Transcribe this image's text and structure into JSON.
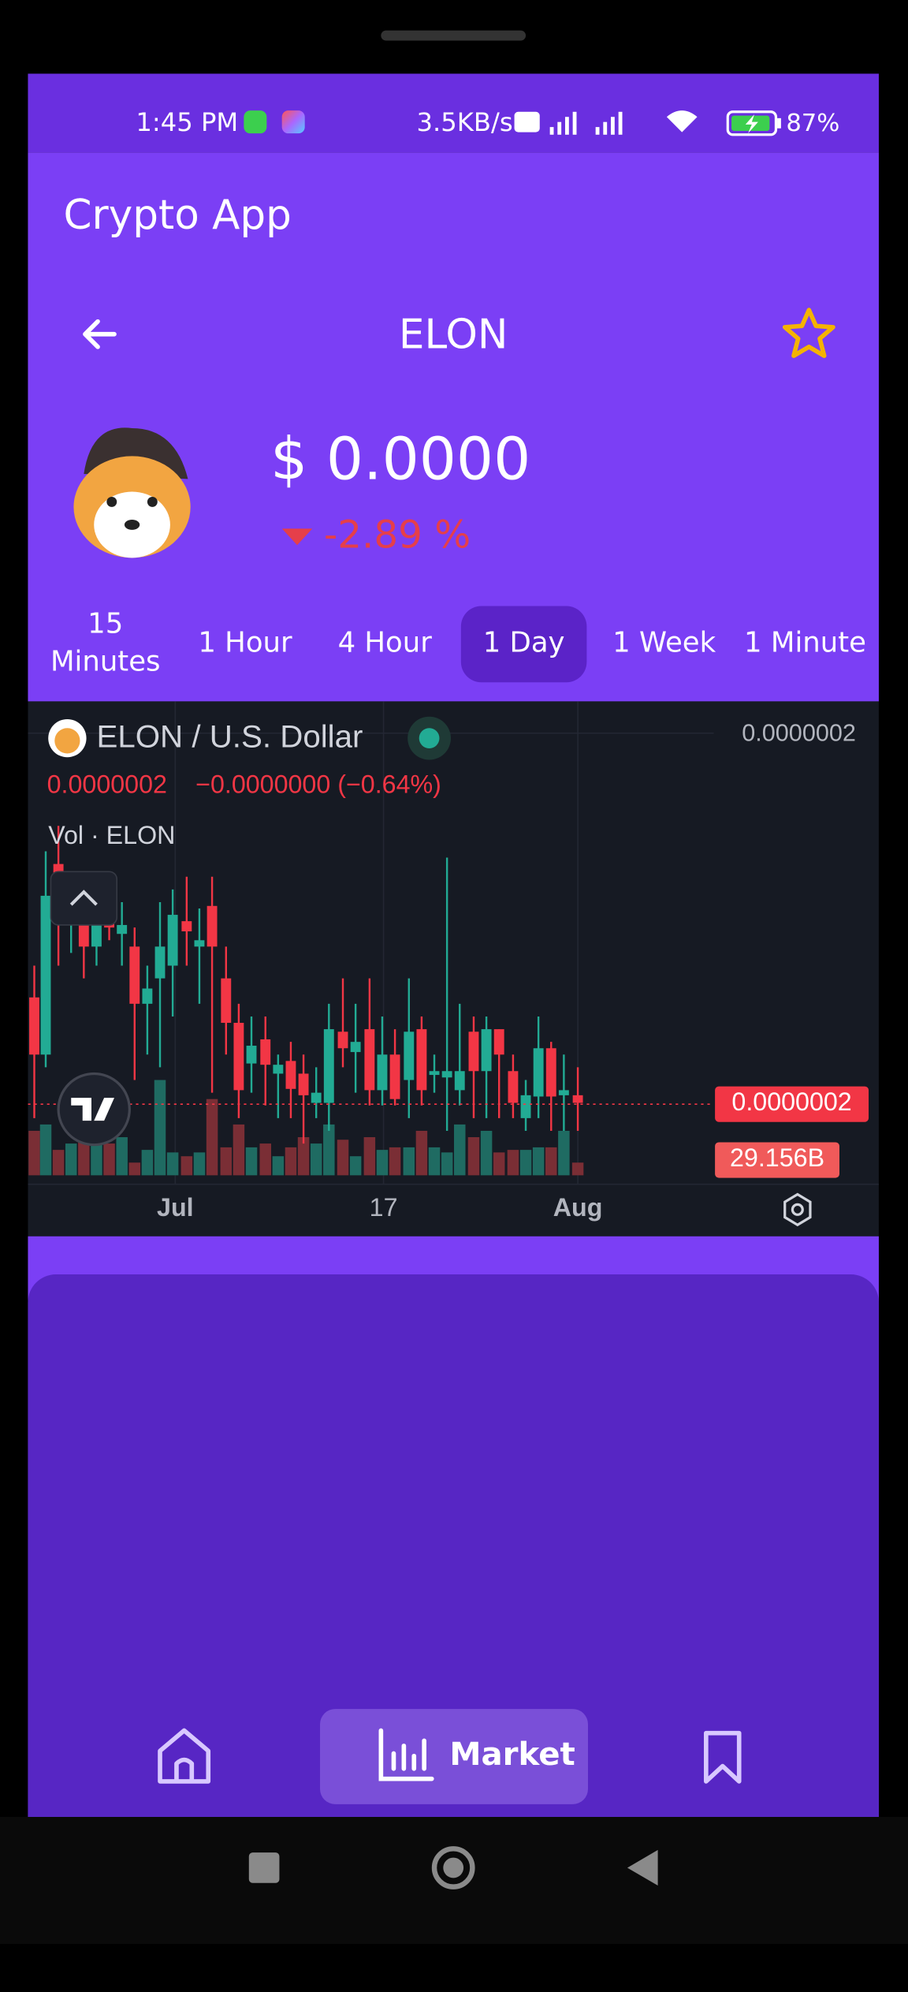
{
  "status_bar": {
    "time": "1:45 PM",
    "network_speed": "3.5KB/s",
    "battery": "87%"
  },
  "app_bar": {
    "title": "Crypto App"
  },
  "coin": {
    "symbol": "ELON",
    "price": "$ 0.0000",
    "change": "-2.89 %"
  },
  "tabs": [
    "15 Minutes",
    "1 Hour",
    "4 Hour",
    "1 Day",
    "1 Week",
    "1 Minute"
  ],
  "chart": {
    "pair": "ELON / U.S. Dollar",
    "scale_top": "0.0000002",
    "ohlc_price": "0.0000002",
    "ohlc_change": "−0.0000000 (−0.64%)",
    "volume_label": "Vol · ELON",
    "price_tag": "0.0000002",
    "volume_tag": "29.156B",
    "x_labels": [
      "Jul",
      "17",
      "Aug"
    ]
  },
  "nav": {
    "active": "Market"
  }
}
